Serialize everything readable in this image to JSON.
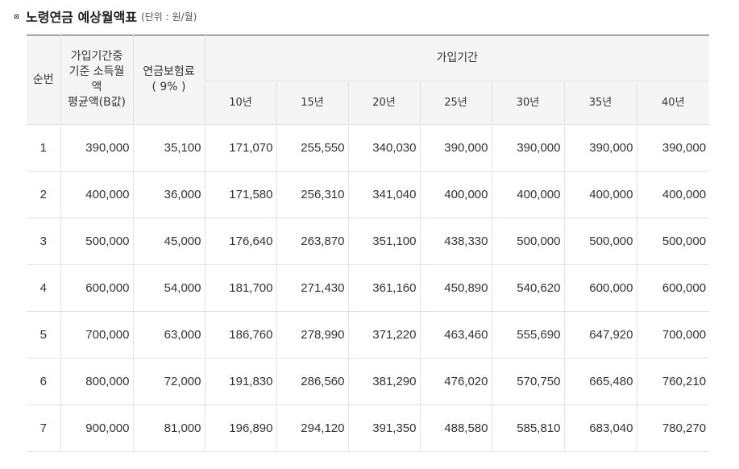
{
  "heading": {
    "title": "노령연금 예상월액표",
    "unit": "(단위 : 원/월)"
  },
  "table": {
    "headers": {
      "index": "순번",
      "income_line1": "가입기간중",
      "income_line2": "기준 소득월",
      "income_line3": "액",
      "income_line4": "평균액(B값)",
      "premium_line1": "연금보험료",
      "premium_line2": "( 9% )",
      "period_group": "가입기간",
      "periods": [
        "10년",
        "15년",
        "20년",
        "25년",
        "30년",
        "35년",
        "40년"
      ]
    },
    "rows": [
      {
        "index": "1",
        "income": "390,000",
        "premium": "35,100",
        "values": [
          "171,070",
          "255,550",
          "340,030",
          "390,000",
          "390,000",
          "390,000",
          "390,000"
        ]
      },
      {
        "index": "2",
        "income": "400,000",
        "premium": "36,000",
        "values": [
          "171,580",
          "256,310",
          "341,040",
          "400,000",
          "400,000",
          "400,000",
          "400,000"
        ]
      },
      {
        "index": "3",
        "income": "500,000",
        "premium": "45,000",
        "values": [
          "176,640",
          "263,870",
          "351,100",
          "438,330",
          "500,000",
          "500,000",
          "500,000"
        ]
      },
      {
        "index": "4",
        "income": "600,000",
        "premium": "54,000",
        "values": [
          "181,700",
          "271,430",
          "361,160",
          "450,890",
          "540,620",
          "600,000",
          "600,000"
        ]
      },
      {
        "index": "5",
        "income": "700,000",
        "premium": "63,000",
        "values": [
          "186,760",
          "278,990",
          "371,220",
          "463,460",
          "555,690",
          "647,920",
          "700,000"
        ]
      },
      {
        "index": "6",
        "income": "800,000",
        "premium": "72,000",
        "values": [
          "191,830",
          "286,560",
          "381,290",
          "476,020",
          "570,750",
          "665,480",
          "760,210"
        ]
      },
      {
        "index": "7",
        "income": "900,000",
        "premium": "81,000",
        "values": [
          "196,890",
          "294,120",
          "391,350",
          "488,580",
          "585,810",
          "683,040",
          "780,270"
        ]
      }
    ]
  }
}
